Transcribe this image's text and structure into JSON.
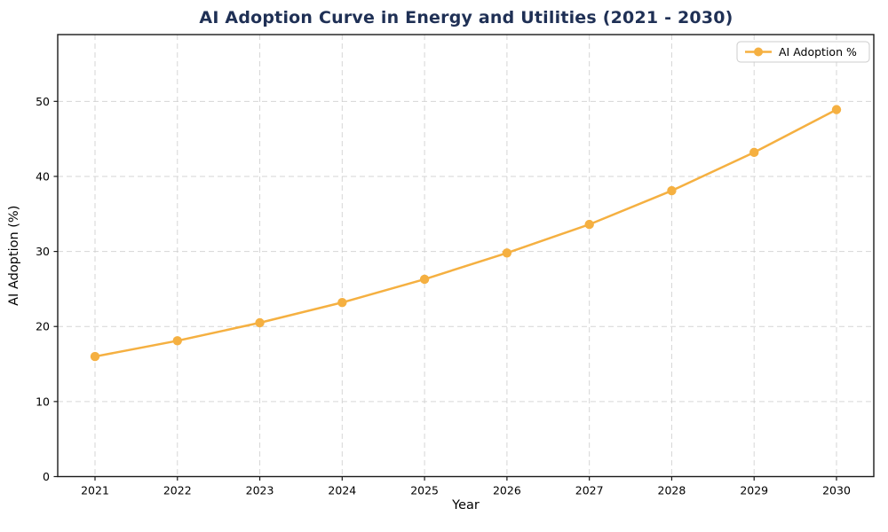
{
  "title": "AI Adoption Curve in Energy and Utilities (2021 - 2030)",
  "title_color": "#1f3055",
  "chart_data": {
    "type": "line",
    "title": "AI Adoption Curve in Energy and Utilities (2021 - 2030)",
    "xlabel": "Year",
    "ylabel": "AI Adoption (%)",
    "categories": [
      "2021",
      "2022",
      "2023",
      "2024",
      "2025",
      "2026",
      "2027",
      "2028",
      "2029",
      "2030"
    ],
    "series": [
      {
        "name": "AI Adoption %",
        "values": [
          16.0,
          18.1,
          20.5,
          23.2,
          26.3,
          29.8,
          33.6,
          38.1,
          43.2,
          48.9
        ],
        "color": "#F5B041",
        "marker": "circle"
      }
    ],
    "ylim": [
      0,
      58.9
    ],
    "yticks": [
      0,
      10,
      20,
      30,
      40,
      50
    ],
    "grid": true,
    "grid_style": "dashed",
    "grid_color": "#cfcfcf",
    "axis_color": "#1a1a1a",
    "text_color": "#000000",
    "legend": {
      "position": "upper-right",
      "entries": [
        "AI Adoption %"
      ]
    }
  }
}
